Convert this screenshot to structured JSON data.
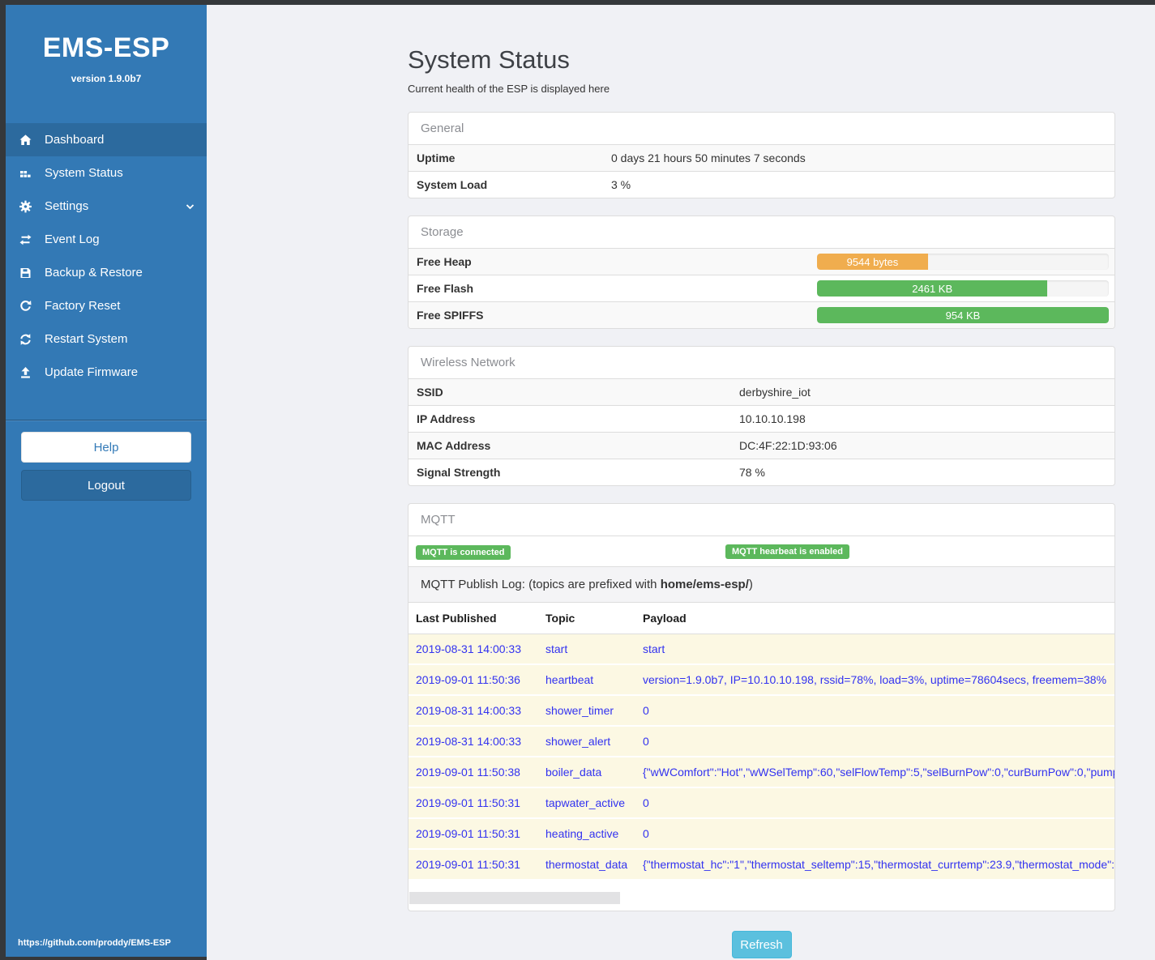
{
  "sidebar": {
    "title": "EMS-ESP",
    "version": "version 1.9.0b7",
    "items": [
      {
        "label": "Dashboard",
        "icon": "home-icon",
        "active": true
      },
      {
        "label": "System Status",
        "icon": "status-blocks-icon"
      },
      {
        "label": "Settings",
        "icon": "gear-icon",
        "has_chevron": true
      },
      {
        "label": "Event Log",
        "icon": "exchange-icon"
      },
      {
        "label": "Backup & Restore",
        "icon": "floppy-save-icon"
      },
      {
        "label": "Factory Reset",
        "icon": "repeat-icon"
      },
      {
        "label": "Restart System",
        "icon": "refresh-icon"
      },
      {
        "label": "Update Firmware",
        "icon": "upload-icon"
      }
    ],
    "help_label": "Help",
    "logout_label": "Logout",
    "footer_link": "https://github.com/proddy/EMS-ESP"
  },
  "page": {
    "title": "System Status",
    "subtitle": "Current health of the ESP is displayed here"
  },
  "general": {
    "header": "General",
    "rows": [
      {
        "label": "Uptime",
        "value": "0 days 21 hours 50 minutes 7 seconds"
      },
      {
        "label": "System Load",
        "value": "3 %"
      }
    ]
  },
  "storage": {
    "header": "Storage",
    "rows": [
      {
        "label": "Free Heap",
        "bar_label": "9544 bytes",
        "percent": 38,
        "color": "#f0ad4e"
      },
      {
        "label": "Free Flash",
        "bar_label": "2461 KB",
        "percent": 79,
        "color": "#5cb85c"
      },
      {
        "label": "Free SPIFFS",
        "bar_label": "954 KB",
        "percent": 100,
        "color": "#5cb85c"
      }
    ]
  },
  "wireless": {
    "header": "Wireless Network",
    "rows": [
      {
        "label": "SSID",
        "value": "derbyshire_iot"
      },
      {
        "label": "IP Address",
        "value": "10.10.10.198"
      },
      {
        "label": "MAC Address",
        "value": "DC:4F:22:1D:93:06"
      },
      {
        "label": "Signal Strength",
        "value": "78 %"
      }
    ]
  },
  "mqtt": {
    "header": "MQTT",
    "badges": [
      "MQTT is connected",
      "MQTT hearbeat is enabled"
    ],
    "publish_log": {
      "text_before": "MQTT Publish Log: (topics are prefixed with ",
      "bold": "home/ems-esp/",
      "text_after": ")"
    },
    "table": {
      "headers": [
        "Last Published",
        "Topic",
        "Payload"
      ],
      "rows": [
        {
          "time": "2019-08-31 14:00:33",
          "topic": "start",
          "payload": "start"
        },
        {
          "time": "2019-09-01 11:50:36",
          "topic": "heartbeat",
          "payload": "version=1.9.0b7, IP=10.10.10.198, rssid=78%, load=3%, uptime=78604secs, freemem=38%"
        },
        {
          "time": "2019-08-31 14:00:33",
          "topic": "shower_timer",
          "payload": "0"
        },
        {
          "time": "2019-08-31 14:00:33",
          "topic": "shower_alert",
          "payload": "0"
        },
        {
          "time": "2019-09-01 11:50:38",
          "topic": "boiler_data",
          "payload": "{\"wWComfort\":\"Hot\",\"wWSelTemp\":60,\"selFlowTemp\":5,\"selBurnPow\":0,\"curBurnPow\":0,\"pump"
        },
        {
          "time": "2019-09-01 11:50:31",
          "topic": "tapwater_active",
          "payload": "0"
        },
        {
          "time": "2019-09-01 11:50:31",
          "topic": "heating_active",
          "payload": "0"
        },
        {
          "time": "2019-09-01 11:50:31",
          "topic": "thermostat_data",
          "payload": "{\"thermostat_hc\":\"1\",\"thermostat_seltemp\":15,\"thermostat_currtemp\":23.9,\"thermostat_mode\":\""
        }
      ]
    }
  },
  "refresh_label": "Refresh",
  "colors": {
    "sidebar": "#3379b5",
    "sidebar_active": "#2c6a9e",
    "frame": "#35383b",
    "success_green": "#5cb85c",
    "warning_orange": "#f0ad4e",
    "info_blue": "#5bc0de",
    "log_row_bg": "#fcf8e3",
    "log_text_blue": "#3232f0",
    "main_bg": "#f0f1f5"
  }
}
